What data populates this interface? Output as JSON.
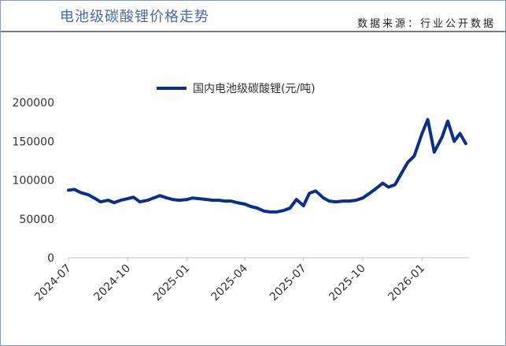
{
  "header": {
    "title": "电池级碳酸锂价格走势",
    "source": "数据来源：行业公开数据"
  },
  "colors": {
    "series": "#0b2f8a",
    "title": "#4a6ba8",
    "axis": "#bfbfbf"
  },
  "chart_data": {
    "type": "line",
    "title": "",
    "xlabel": "",
    "ylabel": "",
    "ylim": [
      0,
      200000
    ],
    "yticks": [
      "0",
      "50000",
      "100000",
      "150000",
      "200000"
    ],
    "xticks": [
      "2024-07",
      "2024-10",
      "2025-01",
      "2025-04",
      "2025-07",
      "2025-10",
      "2026-01"
    ],
    "legend_position": "top",
    "grid": false,
    "series": [
      {
        "name": "国内电池级碳酸锂(元/吨)",
        "x": [
          "2024-07-01",
          "2024-07-10",
          "2024-07-20",
          "2024-08-01",
          "2024-08-10",
          "2024-08-20",
          "2024-09-01",
          "2024-09-10",
          "2024-09-20",
          "2024-10-01",
          "2024-10-10",
          "2024-10-20",
          "2024-11-01",
          "2024-11-10",
          "2024-11-20",
          "2024-12-01",
          "2024-12-10",
          "2024-12-20",
          "2025-01-01",
          "2025-01-10",
          "2025-01-20",
          "2025-02-01",
          "2025-02-10",
          "2025-02-20",
          "2025-03-01",
          "2025-03-10",
          "2025-03-20",
          "2025-04-01",
          "2025-04-10",
          "2025-04-20",
          "2025-05-01",
          "2025-05-10",
          "2025-05-20",
          "2025-06-01",
          "2025-06-10",
          "2025-06-20",
          "2025-07-01",
          "2025-07-10",
          "2025-07-20",
          "2025-08-01",
          "2025-08-10",
          "2025-08-20",
          "2025-09-01",
          "2025-09-10",
          "2025-09-20",
          "2025-10-01",
          "2025-10-10",
          "2025-10-20",
          "2025-11-01",
          "2025-11-10",
          "2025-11-20",
          "2025-12-01",
          "2025-12-10",
          "2025-12-20",
          "2026-01-01",
          "2026-01-10",
          "2026-01-20",
          "2026-02-01",
          "2026-02-10",
          "2026-02-20",
          "2026-03-01",
          "2026-03-10"
        ],
        "values": [
          87000,
          88000,
          84000,
          81000,
          77000,
          72000,
          74000,
          71000,
          74000,
          76000,
          78000,
          72000,
          74000,
          77000,
          80000,
          77000,
          75000,
          74000,
          75000,
          77000,
          76000,
          75000,
          74000,
          74000,
          73000,
          73000,
          71000,
          69000,
          66000,
          64000,
          60000,
          59000,
          59000,
          61000,
          64000,
          75000,
          67000,
          83000,
          86000,
          77000,
          73000,
          72000,
          73000,
          73000,
          74000,
          77000,
          82000,
          88000,
          96000,
          91000,
          94000,
          110000,
          123000,
          131000,
          160000,
          178000,
          136000,
          155000,
          176000,
          150000,
          160000,
          147000
        ]
      }
    ]
  }
}
